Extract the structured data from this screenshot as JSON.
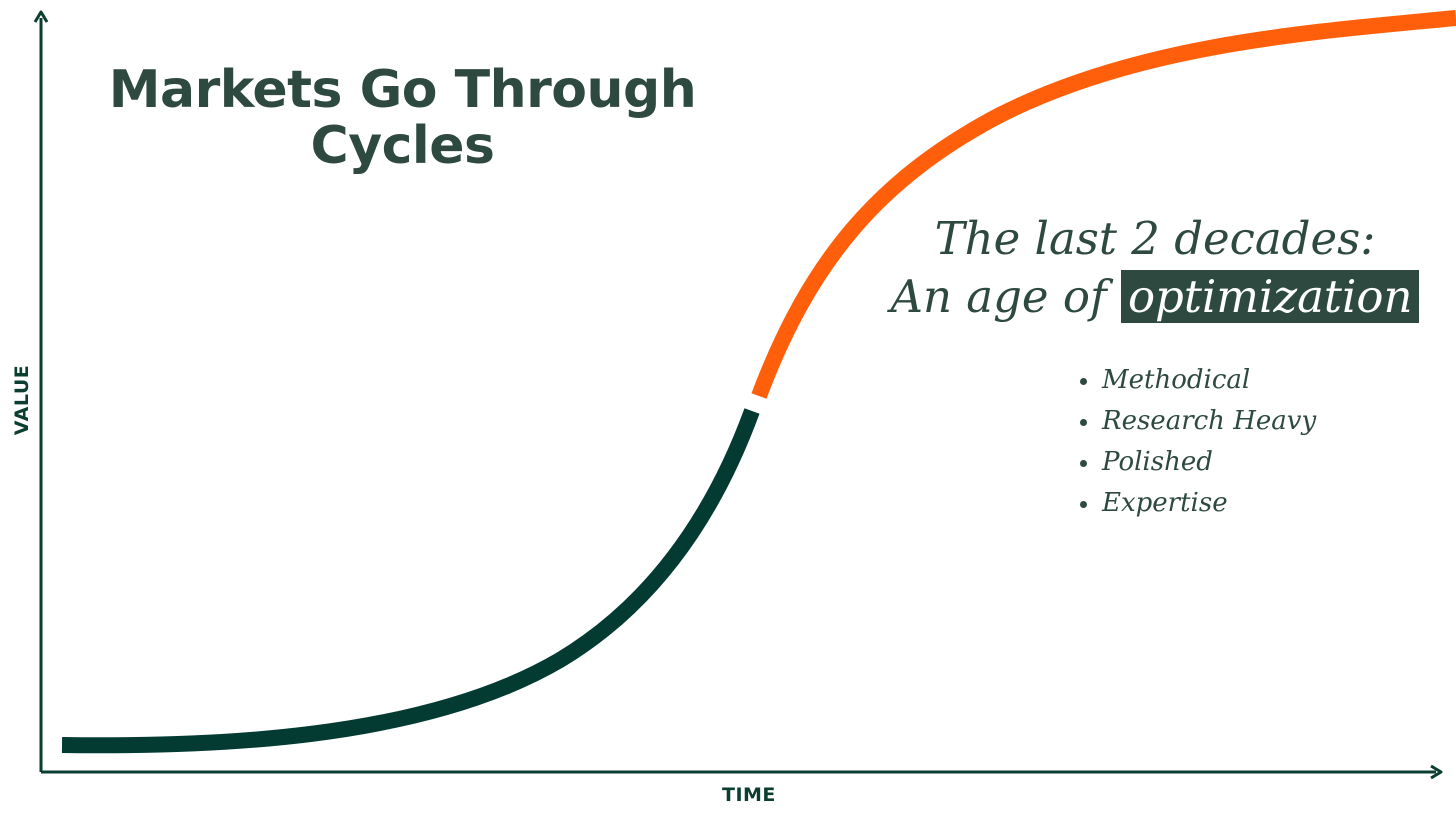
{
  "title": "Markets Go Through Cycles",
  "axes": {
    "x_label": "TIME",
    "y_label": "VALUE"
  },
  "headline": {
    "line1": "The last 2 decades:",
    "line2_prefix": "An age of",
    "line2_highlight": "optimization"
  },
  "bullets": [
    "Methodical",
    "Research Heavy",
    "Polished",
    "Expertise"
  ],
  "colors": {
    "axis": "#0b3d30",
    "curve_early": "#033b33",
    "curve_late": "#ff5f0a",
    "title": "#2e4a40",
    "highlight_bg": "#2e4a40"
  }
}
